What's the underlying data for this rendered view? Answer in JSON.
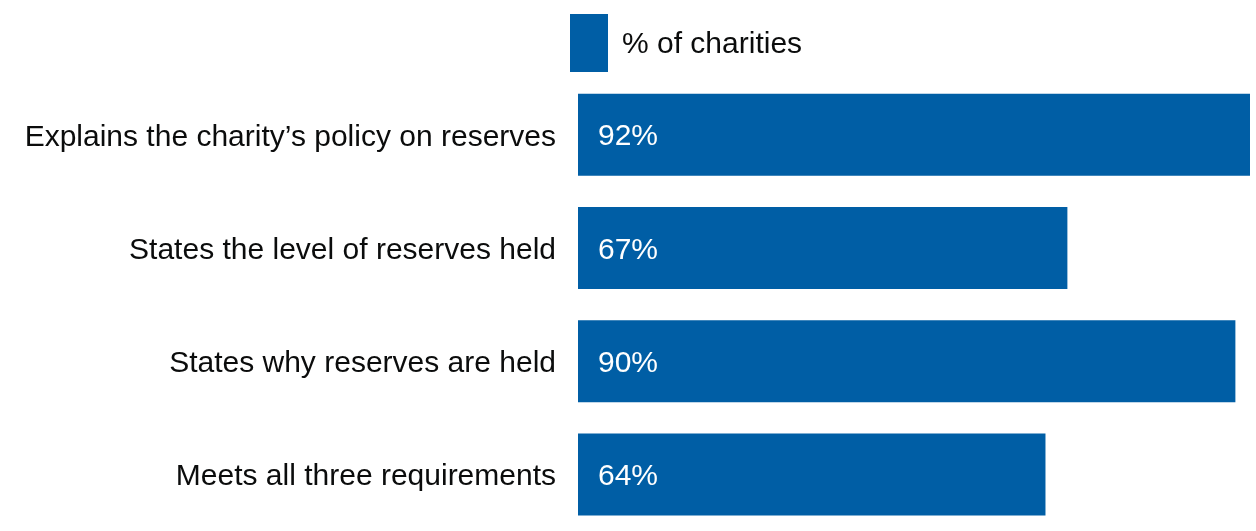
{
  "chart_data": {
    "type": "bar",
    "orientation": "horizontal",
    "categories": [
      "Explains the charity’s policy on reserves",
      "States the level of reserves held",
      "States why reserves are held",
      "Meets all three requirements"
    ],
    "series": [
      {
        "name": "% of charities",
        "color": "#005ea5",
        "values": [
          92,
          67,
          90,
          64
        ],
        "value_labels": [
          "92%",
          "67%",
          "90%",
          "64%"
        ]
      }
    ],
    "legend": "top",
    "grid": false
  }
}
